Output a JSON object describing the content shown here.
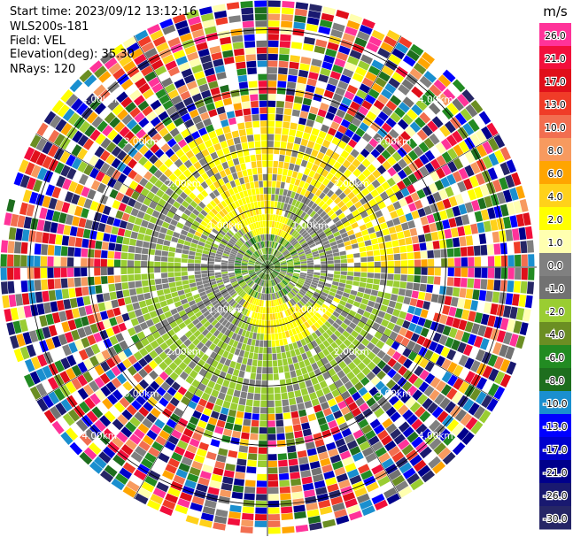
{
  "header": {
    "start_time": "Start time: 2023/09/12 13:12:16",
    "instrument": "WLS200s-181",
    "field": "Field: VEL",
    "elevation": "Elevation(deg): 35.30",
    "nrays": "NRays: 120"
  },
  "chart_data": {
    "type": "heatmap",
    "projection": "polar-ppi",
    "field": "VEL",
    "units": "m/s",
    "n_rays": 120,
    "n_gates": 40,
    "range_rings_km": [
      1.0,
      2.0,
      3.0,
      4.0
    ],
    "ring_labels": [
      "1.00km",
      "2.00km",
      "3.00km",
      "4.00km"
    ],
    "max_range_km": 4.5,
    "spoke_every_deg": 30,
    "colorbar": {
      "title": "m/s",
      "ticks": [
        "26.0",
        "21.0",
        "17.0",
        "13.0",
        "10.0",
        "8.0",
        "6.0",
        "4.0",
        "2.0",
        "1.0",
        "0.0",
        "-1.0",
        "-2.0",
        "-4.0",
        "-6.0",
        "-8.0",
        "-10.0",
        "-13.0",
        "-17.0",
        "-21.0",
        "-26.0",
        "-30.0"
      ],
      "colors": [
        "#ff3399",
        "#f20f3c",
        "#e00f1a",
        "#f03c28",
        "#f26e50",
        "#f79a5f",
        "#ffa500",
        "#ffd11a",
        "#ffff00",
        "#ffffb0",
        "#808080",
        "#727272",
        "#9acd32",
        "#6b8e23",
        "#228b22",
        "#1e6e1e",
        "#1a8fcf",
        "#0000ff",
        "#0000cd",
        "#00008b",
        "#191970",
        "#262666"
      ]
    }
  }
}
